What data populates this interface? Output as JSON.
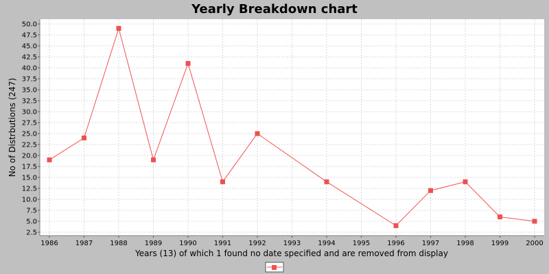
{
  "chart_data": {
    "type": "line",
    "title": "Yearly Breakdown chart",
    "xlabel": "Years (13) of which 1 found no date specified and are removed from display",
    "ylabel": "No of Distrbutions (247)",
    "categories": [
      "1986",
      "1987",
      "1988",
      "1989",
      "1990",
      "1991",
      "1992",
      "1993",
      "1994",
      "1995",
      "1996",
      "1997",
      "1998",
      "1999",
      "2000"
    ],
    "series": [
      {
        "name": "-",
        "points": [
          {
            "x": "1986",
            "y": 19
          },
          {
            "x": "1987",
            "y": 24
          },
          {
            "x": "1988",
            "y": 49
          },
          {
            "x": "1989",
            "y": 19
          },
          {
            "x": "1990",
            "y": 41
          },
          {
            "x": "1991",
            "y": 14
          },
          {
            "x": "1992",
            "y": 25
          },
          {
            "x": "1994",
            "y": 14
          },
          {
            "x": "1996",
            "y": 4
          },
          {
            "x": "1997",
            "y": 12
          },
          {
            "x": "1998",
            "y": 14
          },
          {
            "x": "1999",
            "y": 6
          },
          {
            "x": "2000",
            "y": 5
          }
        ]
      }
    ],
    "ylim": [
      1.5,
      51.5
    ],
    "yticks": [
      "2.5",
      "5.0",
      "7.5",
      "10.0",
      "12.5",
      "15.0",
      "17.5",
      "20.0",
      "22.5",
      "25.0",
      "27.5",
      "30.0",
      "32.5",
      "35.0",
      "37.5",
      "40.0",
      "42.5",
      "45.0",
      "47.5",
      "50.0"
    ],
    "grid": true,
    "legend": {
      "position": "bottom-center",
      "label": "-"
    },
    "colors": {
      "series": "#f05050",
      "background": "#c0c0c0",
      "plot_background": "#ffffff",
      "grid": "#d8d8d8"
    }
  }
}
